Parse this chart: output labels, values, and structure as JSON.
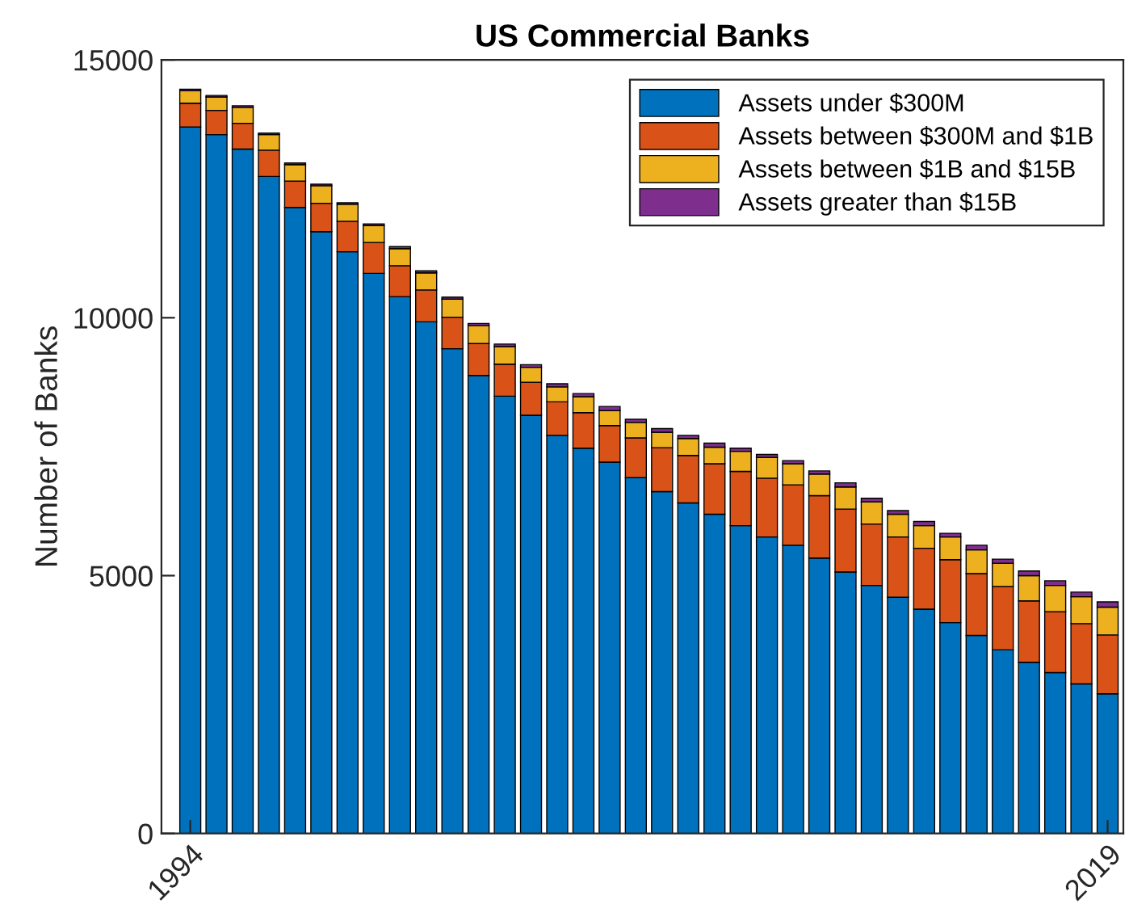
{
  "chart_data": {
    "type": "bar",
    "stacked": true,
    "title": "US Commercial Banks",
    "ylabel": "Number of Banks",
    "categories": [
      "1994",
      null,
      null,
      null,
      null,
      null,
      null,
      null,
      null,
      null,
      null,
      null,
      null,
      null,
      null,
      null,
      null,
      null,
      null,
      null,
      null,
      null,
      null,
      null,
      null,
      null,
      null,
      null,
      null,
      null,
      null,
      null,
      null,
      null,
      null,
      "2019"
    ],
    "series": [
      {
        "name": "Assets under $300M",
        "color": "#0072bd",
        "values": [
          13700,
          13550,
          13270,
          12740,
          12140,
          11670,
          11280,
          10860,
          10410,
          9920,
          9400,
          8880,
          8480,
          8110,
          7720,
          7470,
          7200,
          6900,
          6630,
          6410,
          6190,
          5970,
          5750,
          5590,
          5340,
          5070,
          4810,
          4580,
          4350,
          4090,
          3840,
          3560,
          3320,
          3120,
          2900,
          2710
        ]
      },
      {
        "name": "Assets between $300M and $1B",
        "color": "#d95319",
        "values": [
          460,
          470,
          500,
          510,
          510,
          550,
          590,
          600,
          600,
          620,
          610,
          620,
          620,
          640,
          650,
          690,
          710,
          770,
          850,
          920,
          980,
          1050,
          1140,
          1170,
          1210,
          1220,
          1190,
          1170,
          1180,
          1220,
          1200,
          1230,
          1190,
          1180,
          1170,
          1140
        ]
      },
      {
        "name": "Assets between $1B and $15B",
        "color": "#edb120",
        "values": [
          240,
          260,
          310,
          300,
          320,
          340,
          330,
          330,
          330,
          330,
          350,
          350,
          340,
          290,
          290,
          310,
          290,
          300,
          300,
          330,
          320,
          390,
          400,
          410,
          420,
          430,
          430,
          440,
          440,
          440,
          460,
          450,
          490,
          510,
          520,
          540
        ]
      },
      {
        "name": "Assets greater than $15B",
        "color": "#7e2f8e",
        "values": [
          30,
          30,
          30,
          30,
          30,
          30,
          30,
          30,
          40,
          40,
          40,
          40,
          50,
          50,
          60,
          60,
          80,
          60,
          70,
          60,
          80,
          60,
          60,
          60,
          60,
          80,
          70,
          70,
          80,
          70,
          90,
          80,
          90,
          90,
          90,
          100
        ]
      }
    ],
    "ylim": [
      0,
      15000
    ],
    "yticks": [
      0,
      5000,
      10000,
      15000
    ],
    "grid": false,
    "legend": "top right"
  }
}
